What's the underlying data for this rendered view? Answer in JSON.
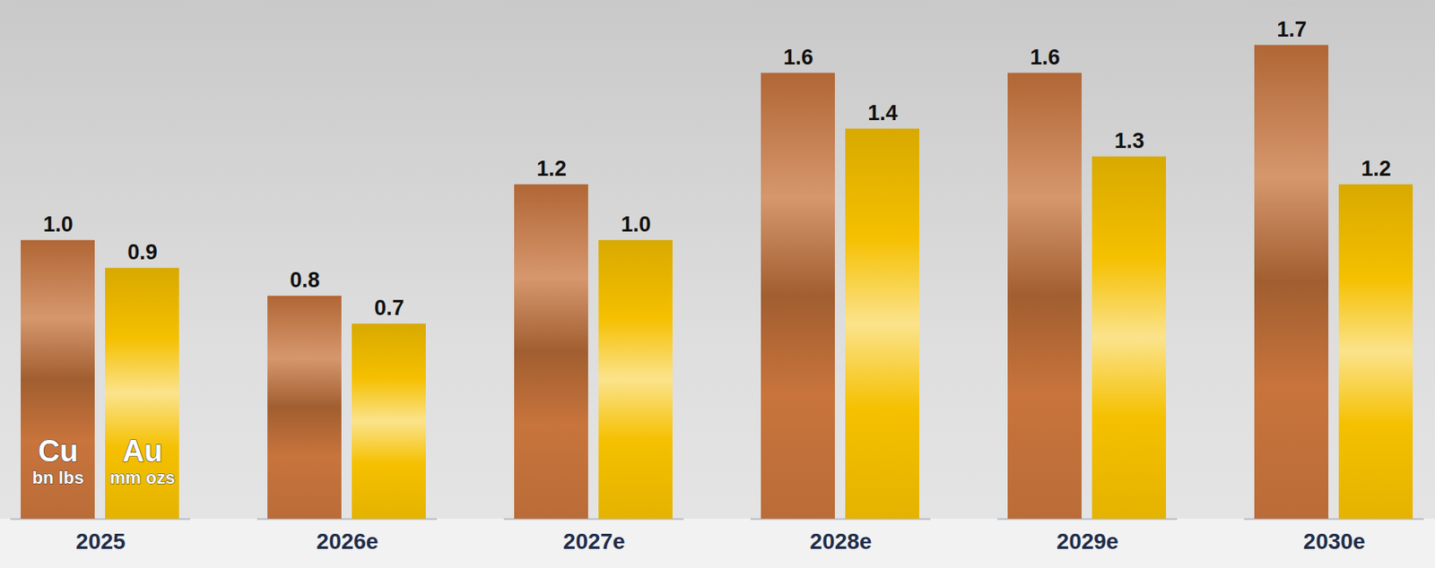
{
  "chart_data": {
    "type": "bar",
    "categories": [
      "2025",
      "2026e",
      "2027e",
      "2028e",
      "2029e",
      "2030e"
    ],
    "series": [
      {
        "name": "Cu",
        "unit": "bn lbs",
        "color": "#c8743c",
        "values": [
          1.0,
          0.8,
          1.2,
          1.6,
          1.6,
          1.7
        ],
        "value_labels": [
          "1.0",
          "0.8",
          "1.2",
          "1.6",
          "1.6",
          "1.7"
        ]
      },
      {
        "name": "Au",
        "unit": "mm ozs",
        "color": "#f5c000",
        "values": [
          0.9,
          0.7,
          1.0,
          1.4,
          1.3,
          1.2
        ],
        "value_labels": [
          "0.9",
          "0.7",
          "1.0",
          "1.4",
          "1.3",
          "1.2"
        ]
      }
    ],
    "ylim": [
      0,
      1.85
    ],
    "data_labels": true,
    "tick_labels": "x",
    "grid": false
  }
}
